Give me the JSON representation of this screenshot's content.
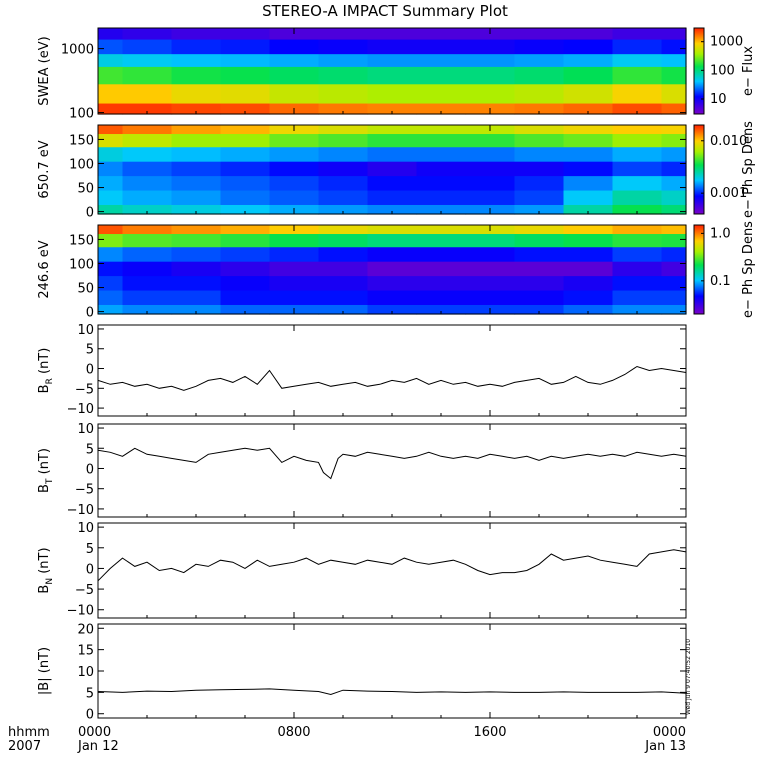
{
  "title": "STEREO-A IMPACT Summary Plot",
  "timestamp": "Wed Jun  9 07:40:52 2010",
  "time_axis": {
    "corner_top": "hhmm",
    "corner_bottom": "2007",
    "ticks": [
      {
        "t": 0,
        "label": "0000",
        "sub": "Jan 12"
      },
      {
        "t": 8,
        "label": "0800",
        "sub": ""
      },
      {
        "t": 16,
        "label": "1600",
        "sub": ""
      },
      {
        "t": 24,
        "label": "0000",
        "sub": "Jan 13"
      }
    ],
    "range_hours": [
      0,
      24
    ]
  },
  "colors": {
    "line": "#000000",
    "frame": "#000000"
  },
  "chart_data": [
    {
      "type": "heatmap",
      "ylabel": "SWEA (eV)",
      "yscale": "log",
      "ylim": [
        95,
        2100
      ],
      "yticks": [
        {
          "v": 100,
          "label": "100"
        },
        {
          "v": 1000,
          "label": "1000"
        }
      ],
      "colorbar": {
        "label": "e− Flux",
        "scale": "log",
        "range": [
          3,
          3000
        ],
        "ticks": [
          {
            "v": 10,
            "label": "10"
          },
          {
            "v": 100,
            "label": "100"
          },
          {
            "v": 1000,
            "label": "1000"
          }
        ]
      },
      "x": [
        0,
        2,
        4,
        6,
        8,
        10,
        12,
        14,
        16,
        18,
        20,
        22,
        24
      ],
      "y_bins": [
        100,
        200,
        400,
        700,
        1000,
        2000
      ],
      "z": [
        [
          2500,
          2500,
          2300,
          2200,
          1800,
          1600,
          1500,
          1500,
          1500,
          1600,
          1800,
          2200,
          1900
        ],
        [
          900,
          900,
          700,
          650,
          500,
          450,
          400,
          400,
          400,
          450,
          550,
          800,
          600
        ],
        [
          200,
          180,
          150,
          140,
          120,
          110,
          100,
          100,
          100,
          110,
          130,
          180,
          150
        ],
        [
          50,
          45,
          40,
          38,
          35,
          32,
          30,
          30,
          30,
          32,
          35,
          45,
          40
        ],
        [
          20,
          18,
          15,
          14,
          12,
          11,
          10,
          10,
          10,
          11,
          12,
          15,
          13
        ],
        [
          8,
          7,
          6,
          6,
          5,
          5,
          5,
          5,
          5,
          5,
          5,
          6,
          6
        ]
      ]
    },
    {
      "type": "heatmap",
      "ylabel": "650.7 eV",
      "yscale": "linear",
      "ylim": [
        -5,
        180
      ],
      "yticks": [
        {
          "v": 0,
          "label": "0"
        },
        {
          "v": 50,
          "label": "50"
        },
        {
          "v": 100,
          "label": "100"
        },
        {
          "v": 150,
          "label": "150"
        }
      ],
      "colorbar": {
        "label": "e− Ph Sp Dens",
        "scale": "log",
        "range": [
          0.0004,
          0.02
        ],
        "ticks": [
          {
            "v": 0.001,
            "label": "0.001"
          },
          {
            "v": 0.01,
            "label": "0.010"
          }
        ]
      },
      "x": [
        0,
        2,
        4,
        6,
        8,
        10,
        12,
        14,
        16,
        18,
        20,
        22,
        24
      ],
      "y_bins": [
        0,
        30,
        60,
        90,
        120,
        150,
        175
      ],
      "z": [
        [
          0.0025,
          0.0022,
          0.002,
          0.0018,
          0.0016,
          0.0015,
          0.0014,
          0.0014,
          0.0014,
          0.0015,
          0.0025,
          0.0035,
          0.003
        ],
        [
          0.0018,
          0.0016,
          0.0015,
          0.0013,
          0.0012,
          0.0011,
          0.001,
          0.001,
          0.001,
          0.0011,
          0.0018,
          0.0025,
          0.0022
        ],
        [
          0.0016,
          0.0014,
          0.0013,
          0.0012,
          0.0011,
          0.001,
          0.0009,
          0.0009,
          0.0009,
          0.001,
          0.0014,
          0.0018,
          0.0016
        ],
        [
          0.0014,
          0.0012,
          0.0011,
          0.001,
          0.0009,
          0.0008,
          0.0007,
          0.0008,
          0.0008,
          0.0008,
          0.0009,
          0.0011,
          0.001
        ],
        [
          0.002,
          0.0018,
          0.0017,
          0.0016,
          0.0015,
          0.0014,
          0.0013,
          0.0013,
          0.0013,
          0.0014,
          0.0014,
          0.0016,
          0.0015
        ],
        [
          0.008,
          0.007,
          0.006,
          0.006,
          0.005,
          0.0045,
          0.004,
          0.004,
          0.004,
          0.0045,
          0.005,
          0.006,
          0.0055
        ],
        [
          0.016,
          0.014,
          0.012,
          0.011,
          0.009,
          0.008,
          0.007,
          0.007,
          0.007,
          0.008,
          0.009,
          0.01,
          0.0095
        ]
      ]
    },
    {
      "type": "heatmap",
      "ylabel": "246.6 eV",
      "yscale": "linear",
      "ylim": [
        -5,
        180
      ],
      "yticks": [
        {
          "v": 0,
          "label": "0"
        },
        {
          "v": 50,
          "label": "50"
        },
        {
          "v": 100,
          "label": "100"
        },
        {
          "v": 150,
          "label": "150"
        }
      ],
      "colorbar": {
        "label": "e− Ph Sp Dens",
        "scale": "log",
        "range": [
          0.02,
          1.5
        ],
        "ticks": [
          {
            "v": 0.1,
            "label": "0.1"
          },
          {
            "v": 1.0,
            "label": "1.0"
          }
        ]
      },
      "x": [
        0,
        2,
        4,
        6,
        8,
        10,
        12,
        14,
        16,
        18,
        20,
        22,
        24
      ],
      "y_bins": [
        0,
        30,
        60,
        90,
        120,
        150,
        175
      ],
      "z": [
        [
          0.09,
          0.08,
          0.08,
          0.07,
          0.07,
          0.07,
          0.06,
          0.06,
          0.06,
          0.06,
          0.07,
          0.08,
          0.08
        ],
        [
          0.07,
          0.06,
          0.06,
          0.05,
          0.05,
          0.05,
          0.045,
          0.045,
          0.045,
          0.045,
          0.05,
          0.06,
          0.06
        ],
        [
          0.06,
          0.05,
          0.05,
          0.045,
          0.04,
          0.04,
          0.035,
          0.035,
          0.035,
          0.035,
          0.04,
          0.05,
          0.05
        ],
        [
          0.05,
          0.045,
          0.04,
          0.035,
          0.03,
          0.03,
          0.025,
          0.025,
          0.025,
          0.025,
          0.025,
          0.035,
          0.03
        ],
        [
          0.08,
          0.07,
          0.065,
          0.06,
          0.055,
          0.05,
          0.045,
          0.045,
          0.045,
          0.05,
          0.05,
          0.06,
          0.055
        ],
        [
          0.35,
          0.3,
          0.28,
          0.25,
          0.22,
          0.2,
          0.18,
          0.18,
          0.18,
          0.2,
          0.22,
          0.25,
          0.24
        ],
        [
          1.2,
          1.0,
          0.9,
          0.8,
          0.7,
          0.6,
          0.55,
          0.55,
          0.55,
          0.6,
          0.7,
          0.8,
          0.75
        ]
      ]
    },
    {
      "type": "line",
      "ylabel": "B",
      "ylabel_sub": "R",
      "ylabel_unit": "(nT)",
      "ylim": [
        -12,
        11
      ],
      "yticks": [
        {
          "v": -10,
          "label": "−10"
        },
        {
          "v": -5,
          "label": "−5"
        },
        {
          "v": 0,
          "label": "0"
        },
        {
          "v": 5,
          "label": "5"
        },
        {
          "v": 10,
          "label": "10"
        }
      ],
      "x": [
        0,
        0.5,
        1,
        1.5,
        2,
        2.5,
        3,
        3.5,
        4,
        4.5,
        5,
        5.5,
        6,
        6.5,
        7,
        7.5,
        8,
        8.5,
        9,
        9.5,
        10,
        10.5,
        11,
        11.5,
        12,
        12.5,
        13,
        13.5,
        14,
        14.5,
        15,
        15.5,
        16,
        16.5,
        17,
        17.5,
        18,
        18.5,
        19,
        19.5,
        20,
        20.5,
        21,
        21.5,
        22,
        22.5,
        23,
        23.5,
        24
      ],
      "y": [
        -3,
        -4,
        -3.5,
        -4.5,
        -4,
        -5,
        -4.5,
        -5.5,
        -4.5,
        -3,
        -2.5,
        -3.5,
        -2,
        -4,
        -0.5,
        -5,
        -4.5,
        -4,
        -3.5,
        -4.5,
        -4,
        -3.5,
        -4.5,
        -4,
        -3,
        -3.5,
        -2.5,
        -4,
        -3,
        -4,
        -3.5,
        -4.5,
        -4,
        -4.5,
        -3.5,
        -3,
        -2.5,
        -4,
        -3.5,
        -2,
        -3.5,
        -4,
        -3,
        -1.5,
        0.5,
        -0.5,
        0,
        -0.5,
        -1
      ]
    },
    {
      "type": "line",
      "ylabel": "B",
      "ylabel_sub": "T",
      "ylabel_unit": "(nT)",
      "ylim": [
        -12,
        11
      ],
      "yticks": [
        {
          "v": -10,
          "label": "−10"
        },
        {
          "v": -5,
          "label": "−5"
        },
        {
          "v": 0,
          "label": "0"
        },
        {
          "v": 5,
          "label": "5"
        },
        {
          "v": 10,
          "label": "10"
        }
      ],
      "x": [
        0,
        0.5,
        1,
        1.5,
        2,
        2.5,
        3,
        3.5,
        4,
        4.5,
        5,
        5.5,
        6,
        6.5,
        7,
        7.5,
        8,
        8.5,
        9,
        9.2,
        9.5,
        9.8,
        10,
        10.5,
        11,
        11.5,
        12,
        12.5,
        13,
        13.5,
        14,
        14.5,
        15,
        15.5,
        16,
        16.5,
        17,
        17.5,
        18,
        18.5,
        19,
        19.5,
        20,
        20.5,
        21,
        21.5,
        22,
        22.5,
        23,
        23.5,
        24
      ],
      "y": [
        4.5,
        4,
        3,
        5,
        3.5,
        3,
        2.5,
        2,
        1.5,
        3.5,
        4,
        4.5,
        5,
        4.5,
        5,
        1.5,
        3,
        2,
        1.5,
        -1,
        -2.5,
        2.5,
        3.5,
        3,
        4,
        3.5,
        3,
        2.5,
        3,
        4,
        3,
        2.5,
        3,
        2.5,
        3.5,
        3,
        2.5,
        3,
        2,
        3,
        2.5,
        3,
        3.5,
        3,
        3.5,
        3,
        4,
        3.5,
        3,
        3.5,
        3
      ]
    },
    {
      "type": "line",
      "ylabel": "B",
      "ylabel_sub": "N",
      "ylabel_unit": "(nT)",
      "ylim": [
        -12,
        11
      ],
      "yticks": [
        {
          "v": -10,
          "label": "−10"
        },
        {
          "v": -5,
          "label": "−5"
        },
        {
          "v": 0,
          "label": "0"
        },
        {
          "v": 5,
          "label": "5"
        },
        {
          "v": 10,
          "label": "10"
        }
      ],
      "x": [
        0,
        0.5,
        1,
        1.5,
        2,
        2.5,
        3,
        3.5,
        4,
        4.5,
        5,
        5.5,
        6,
        6.5,
        7,
        7.5,
        8,
        8.5,
        9,
        9.5,
        10,
        10.5,
        11,
        11.5,
        12,
        12.5,
        13,
        13.5,
        14,
        14.5,
        15,
        15.5,
        16,
        16.5,
        17,
        17.5,
        18,
        18.5,
        19,
        19.5,
        20,
        20.5,
        21,
        21.5,
        22,
        22.5,
        23,
        23.5,
        24
      ],
      "y": [
        -3,
        0,
        2.5,
        0.5,
        1.5,
        -0.5,
        0,
        -1,
        1,
        0.5,
        2,
        1.5,
        0,
        2,
        0.5,
        1,
        1.5,
        2.5,
        1,
        2,
        1.5,
        1,
        2,
        1.5,
        1,
        2.5,
        1.5,
        1,
        1.5,
        2,
        1,
        -0.5,
        -1.5,
        -1,
        -1,
        -0.5,
        1,
        3.5,
        2,
        2.5,
        3,
        2,
        1.5,
        1,
        0.5,
        3.5,
        4,
        4.5,
        4
      ]
    },
    {
      "type": "line",
      "ylabel": "|B|",
      "ylabel_sub": "",
      "ylabel_unit": "(nT)",
      "ylim": [
        -1,
        21
      ],
      "yticks": [
        {
          "v": 0,
          "label": "0"
        },
        {
          "v": 5,
          "label": "5"
        },
        {
          "v": 10,
          "label": "10"
        },
        {
          "v": 15,
          "label": "15"
        },
        {
          "v": 20,
          "label": "20"
        }
      ],
      "x": [
        0,
        1,
        2,
        3,
        4,
        5,
        6,
        7,
        8,
        9,
        9.5,
        10,
        11,
        12,
        13,
        14,
        15,
        16,
        17,
        18,
        19,
        20,
        21,
        22,
        23,
        24
      ],
      "y": [
        5.2,
        5,
        5.3,
        5.2,
        5.5,
        5.6,
        5.7,
        5.8,
        5.5,
        5.2,
        4.5,
        5.5,
        5.3,
        5.2,
        5,
        5.1,
        5,
        5.1,
        5,
        5,
        5.1,
        5,
        5,
        5,
        5.1,
        4.8
      ]
    }
  ]
}
